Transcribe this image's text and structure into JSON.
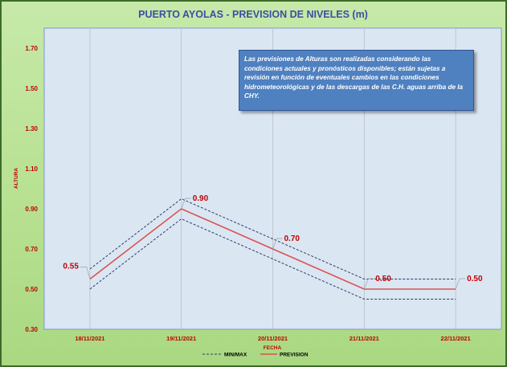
{
  "chart_data": {
    "type": "line",
    "title": "PUERTO AYOLAS - PREVISION DE NIVELES (m)",
    "xlabel": "FECHA",
    "ylabel": "ALTURA",
    "categories": [
      "18/11/2021",
      "19/11/2021",
      "20/11/2021",
      "21/11/2021",
      "22/11/2021"
    ],
    "y_ticks": [
      "0.30",
      "0.50",
      "0.70",
      "0.90",
      "1.10",
      "1.30",
      "1.50",
      "1.70"
    ],
    "ylim": [
      0.3,
      1.8
    ],
    "grid": "vertical",
    "legend_position": "bottom",
    "series": [
      {
        "name": "PREVISION",
        "values": [
          0.55,
          0.9,
          0.7,
          0.5,
          0.5
        ],
        "color": "#d9534f",
        "style": "solid"
      },
      {
        "name": "MIN/MAX",
        "upper": [
          0.6,
          0.95,
          0.75,
          0.55,
          0.55
        ],
        "lower": [
          0.5,
          0.85,
          0.65,
          0.45,
          0.45
        ],
        "color": "#2a3f66",
        "style": "dashed"
      }
    ],
    "data_labels": [
      "0.55",
      "0.90",
      "0.70",
      "0.50",
      "0.50"
    ],
    "annotation": "Las previsiones de Alturas son realizadas considerando las condiciones actuales y pronósticos disponibles;  están sujetas a revisión en función de eventuales cambios en las condiciones hidrometeorológicas y de las descargas de las C.H. aguas arriba de la CHY."
  },
  "colors": {
    "background": "#b6e08f",
    "plot_area": "#dbe6f3",
    "note_box": "#4f80c0",
    "text_accent": "#c00000"
  }
}
